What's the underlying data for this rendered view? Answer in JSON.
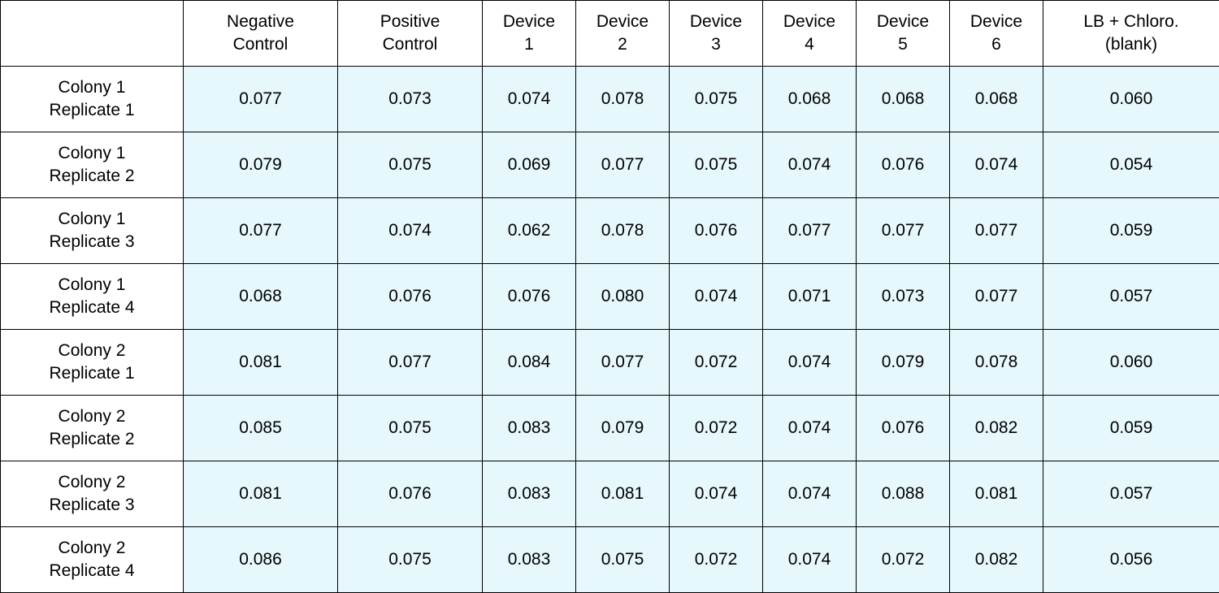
{
  "table": {
    "columns": [
      {
        "line1": "Negative",
        "line2": "Control"
      },
      {
        "line1": "Positive",
        "line2": "Control"
      },
      {
        "line1": "Device",
        "line2": "1"
      },
      {
        "line1": "Device",
        "line2": "2"
      },
      {
        "line1": "Device",
        "line2": "3"
      },
      {
        "line1": "Device",
        "line2": "4"
      },
      {
        "line1": "Device",
        "line2": "5"
      },
      {
        "line1": "Device",
        "line2": "6"
      },
      {
        "line1": "LB + Chloro.",
        "line2": "(blank)"
      }
    ],
    "rows": [
      {
        "line1": "Colony 1",
        "line2": "Replicate 1",
        "values": [
          "0.077",
          "0.073",
          "0.074",
          "0.078",
          "0.075",
          "0.068",
          "0.068",
          "0.068",
          "0.060"
        ]
      },
      {
        "line1": "Colony 1",
        "line2": "Replicate 2",
        "values": [
          "0.079",
          "0.075",
          "0.069",
          "0.077",
          "0.075",
          "0.074",
          "0.076",
          "0.074",
          "0.054"
        ]
      },
      {
        "line1": "Colony 1",
        "line2": "Replicate 3",
        "values": [
          "0.077",
          "0.074",
          "0.062",
          "0.078",
          "0.076",
          "0.077",
          "0.077",
          "0.077",
          "0.059"
        ]
      },
      {
        "line1": "Colony 1",
        "line2": "Replicate 4",
        "values": [
          "0.068",
          "0.076",
          "0.076",
          "0.080",
          "0.074",
          "0.071",
          "0.073",
          "0.077",
          "0.057"
        ]
      },
      {
        "line1": "Colony 2",
        "line2": "Replicate 1",
        "values": [
          "0.081",
          "0.077",
          "0.084",
          "0.077",
          "0.072",
          "0.074",
          "0.079",
          "0.078",
          "0.060"
        ]
      },
      {
        "line1": "Colony 2",
        "line2": "Replicate 2",
        "values": [
          "0.085",
          "0.075",
          "0.083",
          "0.079",
          "0.072",
          "0.074",
          "0.076",
          "0.082",
          "0.059"
        ]
      },
      {
        "line1": "Colony 2",
        "line2": "Replicate 3",
        "values": [
          "0.081",
          "0.076",
          "0.083",
          "0.081",
          "0.074",
          "0.074",
          "0.088",
          "0.081",
          "0.057"
        ]
      },
      {
        "line1": "Colony 2",
        "line2": "Replicate 4",
        "values": [
          "0.086",
          "0.075",
          "0.083",
          "0.075",
          "0.072",
          "0.074",
          "0.072",
          "0.082",
          "0.056"
        ]
      }
    ]
  },
  "colors": {
    "data_cell_background": "#e6f8fc",
    "header_background": "#ffffff",
    "border": "#000000"
  }
}
